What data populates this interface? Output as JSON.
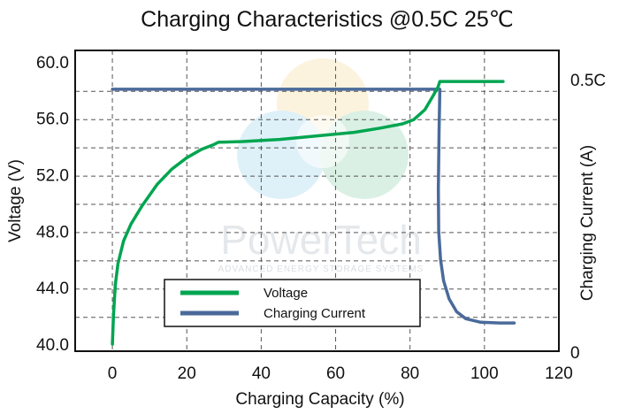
{
  "chart_data": {
    "type": "line",
    "title": "Charging Characteristics @0.5C 25℃",
    "xlabel": "Charging Capacity (%)",
    "ylabel": "Voltage (V)",
    "y2label": "Charging Current (A)",
    "xlim": [
      -10,
      120
    ],
    "ylim": [
      39.5,
      60.8
    ],
    "x_ticks": [
      0,
      20,
      40,
      60,
      80,
      100,
      120
    ],
    "x_tick_labels": [
      "0",
      "20",
      "40",
      "60",
      "80",
      "100",
      "120"
    ],
    "y_ticks": [
      40,
      44,
      48,
      52,
      56,
      60
    ],
    "y_tick_labels": [
      "40.0",
      "44.0",
      "48.0",
      "52.0",
      "56.0",
      "60.0"
    ],
    "y2_tick_labels": [
      "0.5C",
      "0"
    ],
    "grid": true,
    "legend_position": "bottom-left",
    "series": [
      {
        "name": "Voltage",
        "axis": "left",
        "color": "#00a550",
        "points": [
          [
            0,
            40.0
          ],
          [
            0.3,
            42.0
          ],
          [
            0.8,
            44.2
          ],
          [
            1.5,
            45.7
          ],
          [
            3,
            47.3
          ],
          [
            5,
            48.5
          ],
          [
            8,
            49.8
          ],
          [
            12,
            51.3
          ],
          [
            16,
            52.4
          ],
          [
            20,
            53.2
          ],
          [
            24,
            53.8
          ],
          [
            27,
            54.1
          ],
          [
            28.5,
            54.3
          ],
          [
            35,
            54.35
          ],
          [
            45,
            54.5
          ],
          [
            55,
            54.75
          ],
          [
            65,
            55.0
          ],
          [
            72,
            55.3
          ],
          [
            78,
            55.6
          ],
          [
            81,
            55.9
          ],
          [
            84,
            56.6
          ],
          [
            86,
            57.5
          ],
          [
            87.5,
            58.2
          ],
          [
            88,
            58.6
          ],
          [
            105,
            58.6
          ]
        ]
      },
      {
        "name": "Charging Current",
        "axis": "right",
        "color": "#4a6a9a",
        "points": [
          [
            0,
            58.05
          ],
          [
            88,
            58.05
          ],
          [
            87.8,
            55.0
          ],
          [
            87.6,
            51.0
          ],
          [
            87.7,
            48.0
          ],
          [
            88.2,
            46.0
          ],
          [
            89,
            44.5
          ],
          [
            90.5,
            43.2
          ],
          [
            92.5,
            42.3
          ],
          [
            95,
            41.8
          ],
          [
            99,
            41.55
          ],
          [
            104,
            41.5
          ],
          [
            108,
            41.5
          ]
        ]
      }
    ]
  },
  "watermark": {
    "brand": "PowerTech",
    "tagline": "ADVANCED ENERGY STORAGE SYSTEMS"
  }
}
